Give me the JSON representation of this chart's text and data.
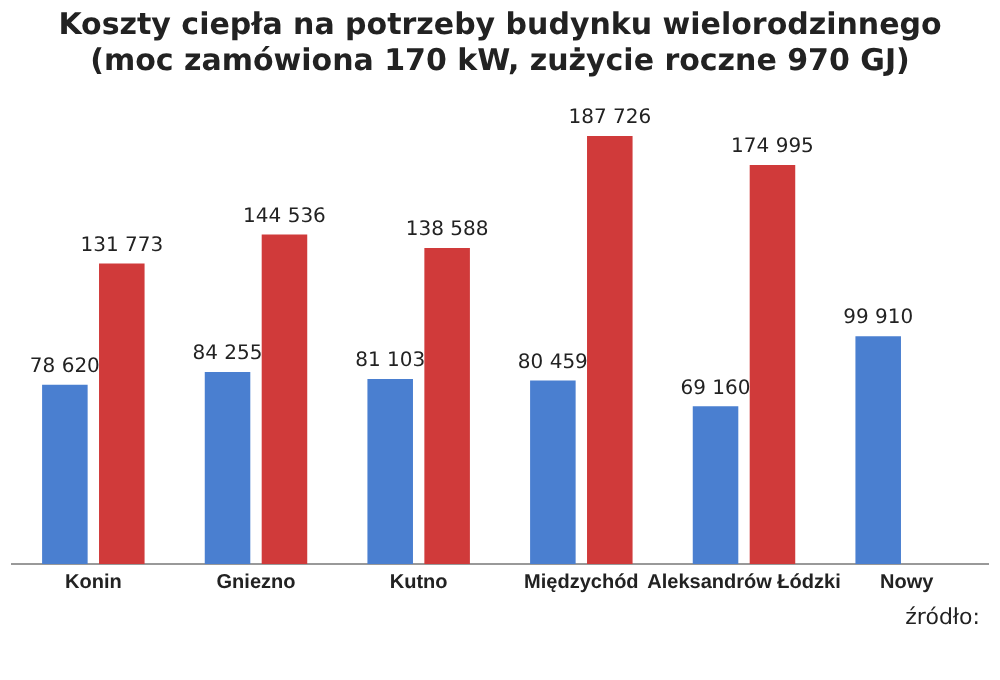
{
  "chart_data": {
    "type": "bar",
    "title": [
      "Koszty ciepła na potrzeby budynku wielorodzinnego",
      "(moc zamówiona 170 kW, zużycie roczne 970 GJ)"
    ],
    "categories": [
      "Konin",
      "Gniezno",
      "Kutno",
      "Międzychód",
      "Aleksandrów Łódzki",
      "Nowy"
    ],
    "series": [
      {
        "color": "#4a7fd0",
        "values": [
          78620,
          84255,
          81103,
          80459,
          69160,
          99910
        ]
      },
      {
        "color": "#d03a3a",
        "values": [
          131773,
          144536,
          138588,
          187726,
          174995,
          null
        ]
      }
    ],
    "data_labels": true,
    "grid": false,
    "legend": false,
    "annotations": [
      "źródło:"
    ]
  }
}
